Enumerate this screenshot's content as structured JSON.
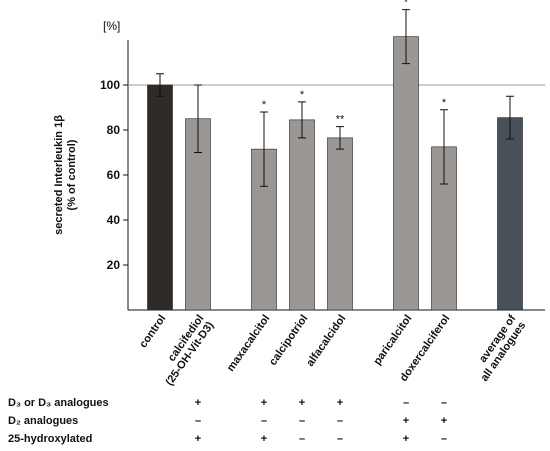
{
  "chart_data": {
    "type": "bar",
    "unit_label": "[%]",
    "ylabel_lines": [
      "secreted Interleukin 1β",
      "(% of control)"
    ],
    "ylim": [
      0,
      120
    ],
    "yticks": [
      20,
      40,
      60,
      80,
      100
    ],
    "reference_line": 100,
    "categories": [
      [
        "control"
      ],
      [
        "calcifediol",
        "(25-OH-Vit-D3)"
      ],
      [
        "maxacalcitol"
      ],
      [
        "calcipotriol"
      ],
      [
        "alfacalcidol"
      ],
      [
        "paricalcitol"
      ],
      [
        "doxercalciferol"
      ],
      [
        "average of",
        "all analogues"
      ]
    ],
    "values": [
      100,
      85,
      71.5,
      84.5,
      76.5,
      121.5,
      72.5,
      85.5
    ],
    "errors": [
      5,
      15,
      16.5,
      8,
      5,
      12,
      16.5,
      9.5
    ],
    "significance": [
      "",
      "",
      "*",
      "*",
      "**",
      "*",
      "*",
      ""
    ],
    "colors": [
      "#302b27",
      "#9a9794",
      "#9a9794",
      "#9a9794",
      "#9a9794",
      "#9a9794",
      "#9a9794",
      "#48505a"
    ],
    "group_gaps_after": [
      1,
      4,
      6
    ]
  },
  "table": {
    "rows": [
      {
        "label": "D₃ or D₃ analogues",
        "marks": [
          "",
          "+",
          "+",
          "+",
          "+",
          "–",
          "–",
          ""
        ]
      },
      {
        "label": "D₂ analogues",
        "marks": [
          "",
          "–",
          "–",
          "–",
          "–",
          "+",
          "+",
          ""
        ]
      },
      {
        "label": "25-hydroxylated",
        "marks": [
          "",
          "+",
          "+",
          "–",
          "–",
          "+",
          "–",
          ""
        ]
      }
    ]
  }
}
